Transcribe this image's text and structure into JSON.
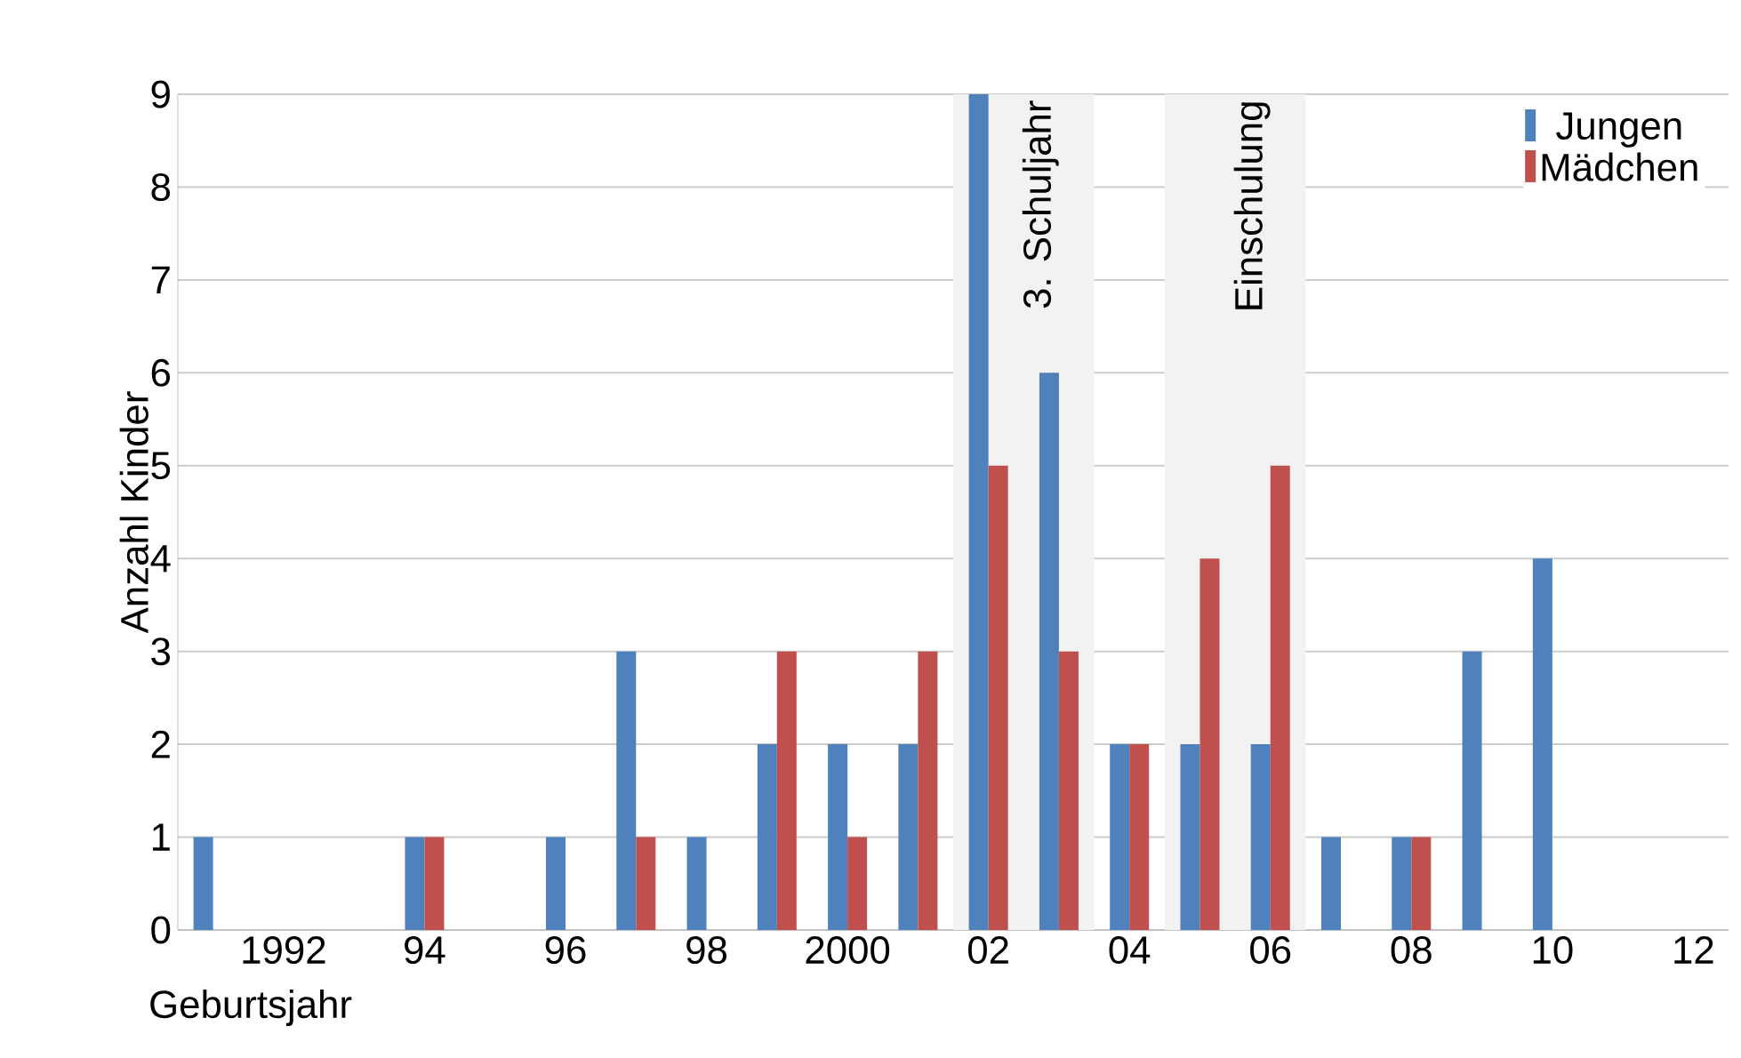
{
  "chart_data": {
    "type": "bar",
    "xlabel": "Geburtsjahr",
    "ylabel": "Anzahl Kinder",
    "x": [
      1991,
      1992,
      1993,
      1994,
      1995,
      1996,
      1997,
      1998,
      1999,
      2000,
      2001,
      2002,
      2003,
      2004,
      2005,
      2006,
      2007,
      2008,
      2009,
      2010,
      2011,
      2012
    ],
    "series": [
      {
        "name": "Jungen",
        "color": "#4f81bd",
        "values": [
          1,
          0,
          0,
          1,
          0,
          1,
          3,
          1,
          2,
          2,
          2,
          9,
          6,
          2,
          2,
          2,
          1,
          1,
          3,
          4,
          0,
          0
        ]
      },
      {
        "name": "Mädchen",
        "color": "#c0504d",
        "values": [
          0,
          0,
          0,
          1,
          0,
          0,
          1,
          0,
          3,
          1,
          3,
          5,
          3,
          2,
          4,
          5,
          0,
          1,
          0,
          0,
          0,
          0
        ]
      }
    ],
    "xlim": [
      1990.5,
      2012.5
    ],
    "xticks": [
      {
        "value": 1992,
        "label": "1992"
      },
      {
        "value": 1994,
        "label": "94"
      },
      {
        "value": 1996,
        "label": "96"
      },
      {
        "value": 1998,
        "label": "98"
      },
      {
        "value": 2000,
        "label": "2000"
      },
      {
        "value": 2002,
        "label": "02"
      },
      {
        "value": 2004,
        "label": "04"
      },
      {
        "value": 2006,
        "label": "06"
      },
      {
        "value": 2008,
        "label": "08"
      },
      {
        "value": 2010,
        "label": "10"
      },
      {
        "value": 2012,
        "label": "12"
      }
    ],
    "ylim": [
      0,
      9
    ],
    "yticks": [
      0,
      1,
      2,
      3,
      4,
      5,
      6,
      7,
      8,
      9
    ],
    "bands": [
      {
        "axis": "x",
        "from": 2001.5,
        "to": 2003.5,
        "label": "3. Schuljahr",
        "color": "#f2f2f2"
      },
      {
        "axis": "x",
        "from": 2004.5,
        "to": 2006.5,
        "label": "Einschulung",
        "color": "#f2f2f2"
      }
    ],
    "grid": "y",
    "legend": "top right"
  }
}
